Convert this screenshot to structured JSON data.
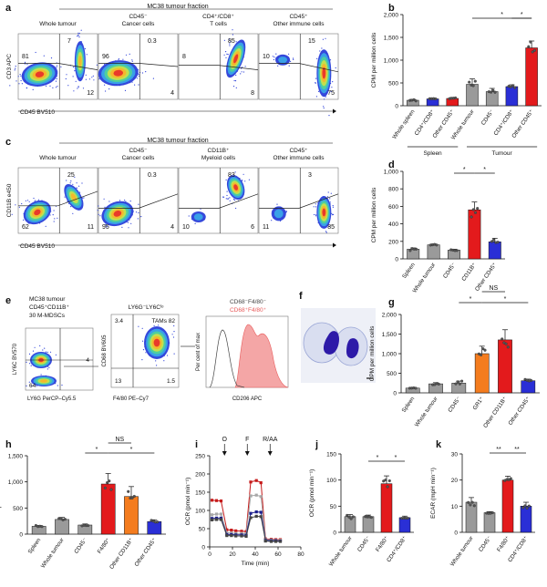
{
  "panels": {
    "a": {
      "letter": "a",
      "banner": "MC38 tumour fraction",
      "subtitles": [
        [
          "Whole tumour"
        ],
        [
          "CD45⁻",
          "Cancer cells"
        ],
        [
          "CD4⁺/CD8⁺",
          "T cells"
        ],
        [
          "CD45⁺",
          "Other immune cells"
        ]
      ],
      "ylabel": "CD3 APC",
      "xlabel": "CD45 BV510",
      "quads": [
        {
          "tl": "81",
          "tr": "7",
          "bl": "",
          "br": "12"
        },
        {
          "tl": "96",
          "tr": "0.3",
          "bl": "",
          "br": "4"
        },
        {
          "tl": "8",
          "tr": "85",
          "bl": "",
          "br": "8"
        },
        {
          "tl": "10",
          "tr": "15",
          "bl": "",
          "br": "75"
        }
      ]
    },
    "c": {
      "letter": "c",
      "banner": "MC38 tumour fraction",
      "subtitles": [
        [
          "Whole tumour"
        ],
        [
          "CD45⁻",
          "Cancer cells"
        ],
        [
          "CD11B⁺",
          "Myeloid cells"
        ],
        [
          "CD45⁺",
          "Other immune cells"
        ]
      ],
      "ylabel": "CD11B e450",
      "xlabel": "CD45 BV510",
      "quads": [
        {
          "tl": "",
          "tr": "25",
          "bl": "62",
          "br": "11"
        },
        {
          "tl": "",
          "tr": "0.3",
          "bl": "95",
          "br": "4"
        },
        {
          "tl": "",
          "tr": "83",
          "bl": "10",
          "br": "6"
        },
        {
          "tl": "",
          "tr": "3",
          "bl": "11",
          "br": "85"
        }
      ]
    },
    "e": {
      "letter": "e",
      "plot1": {
        "title": [
          "MC38 tumour",
          "CD45⁺CD11B⁺"
        ],
        "gate_top": "30 M-MDSCs",
        "right": "4",
        "bottom": "64",
        "ylabel": "LY6C BV570",
        "xlabel": "LY6G PerCP–Cy5.5"
      },
      "plot2": {
        "title": "LY6G⁻LY6Cˡᵒ",
        "tl": "3.4",
        "tr": "TAMs 82",
        "bl": "13",
        "br": "1.5",
        "ylabel": "CD68 BV605",
        "xlabel": "F4/80 PE–Cy7"
      },
      "plot3": {
        "legend1": "CD68⁻F4/80⁻",
        "legend2": "CD68⁺F4/80⁺",
        "ylabel": "Per cent of max",
        "xlabel": "CD206 APC",
        "color_neg": "#444444",
        "color_pos": "#e85a5a"
      }
    },
    "f": {
      "letter": "f"
    },
    "spleen_label": "Spleen",
    "tumour_label": "Tumour",
    "ns": "NS",
    "star": "*",
    "dstar": "**"
  },
  "chart_data": [
    {
      "panel": "b",
      "type": "bar",
      "ylabel": "CPM per million cells",
      "ylim": [
        0,
        2000
      ],
      "yticks": [
        "0",
        "500",
        "1,000",
        "1,500",
        "2,000"
      ],
      "categories": [
        "Whole spleen",
        "CD4⁺/CD8⁺",
        "Other CD45⁺",
        "Whole tumour",
        "CD45⁻",
        "CD4⁺/CD8⁺",
        "Other CD45⁺"
      ],
      "values": [
        120,
        150,
        160,
        470,
        310,
        420,
        1270
      ],
      "errors": [
        20,
        20,
        20,
        120,
        70,
        40,
        150
      ],
      "colors": [
        "#9a9a9a",
        "#2a2fd6",
        "#e31a1c",
        "#9a9a9a",
        "#9a9a9a",
        "#2a2fd6",
        "#e31a1c"
      ],
      "groups": [
        "Spleen",
        "Tumour"
      ]
    },
    {
      "panel": "d",
      "type": "bar",
      "ylabel": "CPM per million cells",
      "ylim": [
        0,
        1000
      ],
      "yticks": [
        "0",
        "200",
        "400",
        "600",
        "800",
        "1,000"
      ],
      "categories": [
        "Spleen",
        "Whole tumour",
        "CD45⁻",
        "CD11B⁺",
        "Other CD45⁺"
      ],
      "values": [
        110,
        160,
        100,
        560,
        195
      ],
      "errors": [
        15,
        10,
        10,
        90,
        40
      ],
      "colors": [
        "#9a9a9a",
        "#9a9a9a",
        "#9a9a9a",
        "#e31a1c",
        "#2a2fd6"
      ]
    },
    {
      "panel": "g",
      "type": "bar",
      "ylabel": "CPM per million cells",
      "ylim": [
        0,
        2000
      ],
      "yticks": [
        "0",
        "500",
        "1,000",
        "1,500",
        "2,000"
      ],
      "categories": [
        "Spleen",
        "Whole tumour",
        "CD45⁻",
        "GR1⁺",
        "Other CD11B⁺",
        "Other CD45⁺"
      ],
      "values": [
        120,
        230,
        250,
        1000,
        1350,
        310
      ],
      "errors": [
        15,
        30,
        50,
        190,
        260,
        40
      ],
      "colors": [
        "#9a9a9a",
        "#9a9a9a",
        "#9a9a9a",
        "#f47c1e",
        "#e31a1c",
        "#2a2fd6"
      ]
    },
    {
      "panel": "h",
      "type": "bar",
      "ylabel": "CPM per million cells",
      "ylim": [
        0,
        1500
      ],
      "yticks": [
        "0",
        "500",
        "1,000",
        "1,500"
      ],
      "categories": [
        "Spleen",
        "Whole tumour",
        "CD45⁻",
        "F4/80⁺",
        "Other CD11B⁺",
        "Other CD45⁺"
      ],
      "values": [
        150,
        280,
        175,
        960,
        720,
        240
      ],
      "errors": [
        15,
        40,
        20,
        200,
        190,
        35
      ],
      "colors": [
        "#9a9a9a",
        "#9a9a9a",
        "#9a9a9a",
        "#e31a1c",
        "#f47c1e",
        "#2a2fd6"
      ]
    },
    {
      "panel": "i",
      "type": "line",
      "ylabel": "OCR (pmol min⁻¹)",
      "xlabel": "Time (min)",
      "ylim": [
        0,
        250
      ],
      "yticks": [
        "0",
        "50",
        "100",
        "150",
        "200",
        "250"
      ],
      "xlim": [
        0,
        80
      ],
      "xticks": [
        "0",
        "20",
        "40",
        "60",
        "80"
      ],
      "injections": [
        {
          "label": "O",
          "x": 13
        },
        {
          "label": "F",
          "x": 33
        },
        {
          "label": "R/AA",
          "x": 53
        }
      ],
      "x": [
        2,
        6,
        10,
        15,
        19,
        23,
        28,
        32,
        36,
        41,
        45,
        49,
        54,
        58,
        62
      ],
      "series": [
        {
          "values": [
            128,
            127,
            126,
            47,
            46,
            44,
            43,
            42,
            178,
            182,
            176,
            22,
            21,
            20,
            20
          ],
          "color": "#c61b1b"
        },
        {
          "values": [
            88,
            90,
            90,
            38,
            38,
            37,
            37,
            36,
            140,
            142,
            138,
            20,
            19,
            18,
            18
          ],
          "color": "#a8a8a8"
        },
        {
          "values": [
            78,
            79,
            79,
            34,
            34,
            33,
            33,
            32,
            92,
            96,
            95,
            18,
            17,
            17,
            16
          ],
          "color": "#1c1f8c"
        },
        {
          "values": [
            74,
            75,
            75,
            31,
            31,
            30,
            30,
            29,
            80,
            84,
            83,
            16,
            15,
            15,
            15
          ],
          "color": "#444444"
        }
      ]
    },
    {
      "panel": "j",
      "type": "bar",
      "ylabel": "OCR (pmol min⁻¹)",
      "ylim": [
        0,
        150
      ],
      "yticks": [
        "0",
        "50",
        "100",
        "150"
      ],
      "categories": [
        "Whole tumour",
        "CD45⁻",
        "F4/80⁺",
        "CD4⁺/CD8⁺"
      ],
      "values": [
        30,
        30,
        93,
        28
      ],
      "errors": [
        4,
        3,
        15,
        3
      ],
      "colors": [
        "#9a9a9a",
        "#9a9a9a",
        "#e31a1c",
        "#2a2fd6"
      ]
    },
    {
      "panel": "k",
      "type": "bar",
      "ylabel": "ECAR (mpH min⁻¹)",
      "ylim": [
        0,
        30
      ],
      "yticks": [
        "0",
        "10",
        "20",
        "30"
      ],
      "categories": [
        "Whole tumour",
        "CD45⁻",
        "F4/80⁺",
        "CD4⁺/CD8⁺"
      ],
      "values": [
        11.5,
        7.5,
        20,
        10
      ],
      "errors": [
        1.8,
        0.4,
        1.5,
        1.5
      ],
      "colors": [
        "#9a9a9a",
        "#9a9a9a",
        "#e31a1c",
        "#2a2fd6"
      ]
    }
  ]
}
